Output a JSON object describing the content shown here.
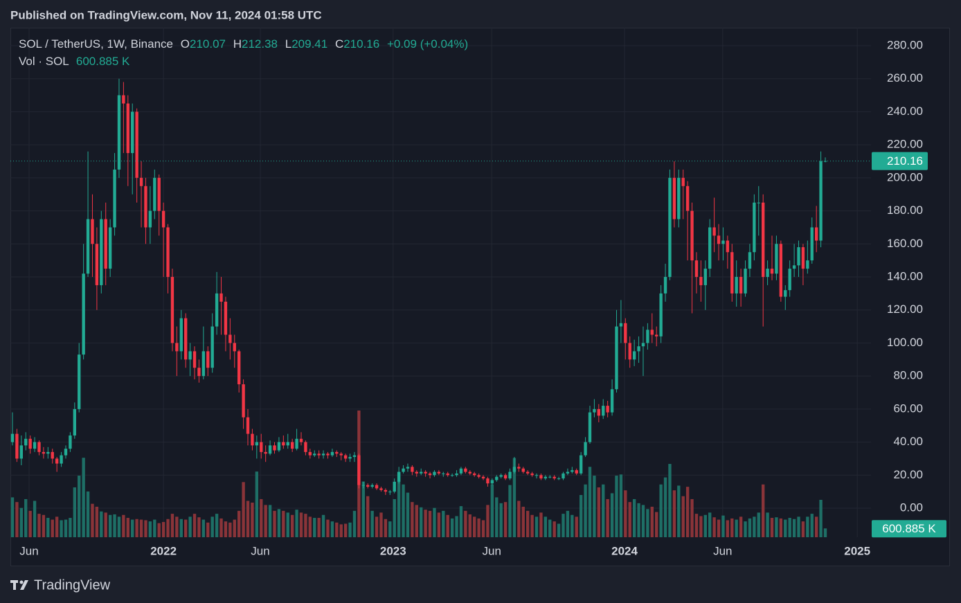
{
  "header": "Published on TradingView.com, Nov 11, 2024 01:58 UTC",
  "footer": "TradingView",
  "chart_data": {
    "type": "candlestick",
    "legend": {
      "symbol": "SOL / TetherUS, 1W, Binance",
      "open_label": "O",
      "high_label": "H",
      "low_label": "L",
      "close_label": "C",
      "change": "+0.09 (+0.04%)",
      "volume_title": "Vol · SOL",
      "volume_value_label": "600.885 K"
    },
    "up_color": "#22ab94",
    "down_color": "#f23645",
    "volume_up_color": "#1e6f66",
    "volume_down_color": "#8a3439",
    "grid": true,
    "ylim": [
      -17.6,
      290.9
    ],
    "yticks": [
      {
        "value": 0,
        "label": "0.00"
      },
      {
        "value": 20,
        "label": "20.00"
      },
      {
        "value": 40,
        "label": "40.00"
      },
      {
        "value": 60,
        "label": "60.00"
      },
      {
        "value": 80,
        "label": "80.00"
      },
      {
        "value": 100,
        "label": "100.00"
      },
      {
        "value": 120,
        "label": "120.00"
      },
      {
        "value": 140,
        "label": "140.00"
      },
      {
        "value": 160,
        "label": "160.00"
      },
      {
        "value": 180,
        "label": "180.00"
      },
      {
        "value": 200,
        "label": "200.00"
      },
      {
        "value": 220,
        "label": "220.00"
      },
      {
        "value": 240,
        "label": "240.00"
      },
      {
        "value": 260,
        "label": "260.00"
      },
      {
        "value": 280,
        "label": "280.00"
      }
    ],
    "xticks": [
      {
        "value": 3.74,
        "label": "Jun"
      },
      {
        "value": 34.0,
        "label": "2022"
      },
      {
        "value": 55.8,
        "label": "Jun"
      },
      {
        "value": 85.7,
        "label": "2023"
      },
      {
        "value": 107.9,
        "label": "Jun"
      },
      {
        "value": 137.8,
        "label": "2024"
      },
      {
        "value": 159.9,
        "label": "Jun"
      },
      {
        "value": 190.2,
        "label": "2025"
      }
    ],
    "open": [
      40,
      45,
      30,
      38,
      42,
      36,
      40,
      34,
      33,
      34,
      30,
      27,
      32,
      36,
      44,
      60,
      93,
      142,
      175,
      160,
      135,
      175,
      145,
      170,
      205,
      250,
      245,
      215,
      240,
      200,
      195,
      170,
      180,
      200,
      180,
      170,
      140,
      100,
      95,
      115,
      90,
      95,
      85,
      80,
      95,
      85,
      110,
      130,
      125,
      105,
      100,
      95,
      75,
      55,
      45,
      38,
      40,
      34,
      33,
      38,
      35,
      40,
      38,
      40,
      36,
      42,
      40,
      34,
      32,
      33,
      32,
      33,
      32,
      34,
      33,
      32,
      30,
      31,
      32,
      14,
      14,
      13,
      14,
      12,
      11,
      10,
      10,
      16,
      22,
      24,
      25,
      22,
      21,
      22,
      21,
      20,
      22,
      21,
      21,
      20,
      20,
      21,
      24,
      22,
      21,
      20,
      19,
      18,
      15,
      17,
      19,
      20,
      18,
      22,
      25,
      24,
      22,
      21,
      20,
      20,
      18,
      19,
      19,
      18,
      18,
      21,
      22,
      23,
      21,
      32,
      40,
      58,
      60,
      56,
      62,
      58,
      72,
      110,
      112,
      100,
      90,
      95,
      98,
      100,
      108,
      105,
      104,
      130,
      140,
      200,
      175,
      200,
      195,
      180,
      150,
      140,
      135,
      145,
      170,
      165,
      160,
      162,
      155,
      130,
      140,
      130,
      145,
      155,
      185,
      185,
      140,
      145,
      142,
      160,
      128,
      132,
      145,
      147,
      158,
      145,
      150,
      170,
      162,
      210.07
    ],
    "high": [
      58,
      48,
      44,
      46,
      44,
      43,
      41,
      37,
      37,
      36,
      31,
      34,
      38,
      46,
      64,
      100,
      160,
      216,
      190,
      170,
      180,
      185,
      175,
      215,
      260,
      258,
      250,
      245,
      242,
      210,
      200,
      195,
      205,
      202,
      185,
      172,
      145,
      110,
      120,
      118,
      100,
      98,
      90,
      110,
      98,
      118,
      143,
      140,
      128,
      115,
      105,
      96,
      78,
      60,
      48,
      44,
      45,
      38,
      41,
      40,
      43,
      44,
      45,
      42,
      48,
      46,
      41,
      36,
      35,
      35,
      35,
      34,
      36,
      35,
      34,
      33,
      33,
      34,
      33,
      16,
      15,
      15,
      15,
      13,
      12,
      11,
      18,
      25,
      26,
      27,
      26,
      23,
      24,
      23,
      22,
      23,
      23,
      22,
      22,
      21,
      23,
      25,
      25,
      23,
      22,
      21,
      20,
      19,
      18,
      20,
      21,
      21,
      24,
      31,
      27,
      25,
      23,
      22,
      21,
      21,
      20,
      20,
      20,
      19,
      22,
      24,
      25,
      24,
      34,
      43,
      62,
      66,
      63,
      66,
      65,
      78,
      120,
      126,
      115,
      104,
      102,
      104,
      110,
      112,
      118,
      110,
      135,
      148,
      205,
      210,
      205,
      205,
      198,
      185,
      155,
      150,
      150,
      175,
      188,
      172,
      170,
      165,
      160,
      150,
      145,
      150,
      160,
      190,
      195,
      190,
      150,
      165,
      165,
      162,
      135,
      150,
      160,
      162,
      160,
      162,
      176,
      183,
      216,
      212.38
    ],
    "low": [
      38,
      28,
      26,
      35,
      33,
      34,
      32,
      30,
      30,
      27,
      22,
      25,
      30,
      34,
      42,
      58,
      90,
      140,
      140,
      120,
      130,
      135,
      140,
      165,
      200,
      215,
      195,
      190,
      185,
      170,
      160,
      160,
      175,
      165,
      140,
      130,
      95,
      80,
      90,
      85,
      80,
      78,
      76,
      78,
      80,
      82,
      105,
      105,
      95,
      90,
      85,
      70,
      48,
      38,
      35,
      30,
      30,
      28,
      32,
      33,
      34,
      36,
      36,
      34,
      35,
      38,
      32,
      30,
      31,
      30,
      30,
      30,
      31,
      31,
      29,
      28,
      28,
      28,
      12,
      12,
      12,
      12,
      11,
      10,
      8,
      8,
      9,
      15,
      21,
      22,
      20,
      19,
      20,
      19,
      18,
      19,
      20,
      19,
      19,
      19,
      19,
      20,
      21,
      20,
      19,
      18,
      17,
      13,
      14,
      16,
      18,
      17,
      17,
      21,
      22,
      21,
      20,
      19,
      18,
      17,
      17,
      18,
      17,
      17,
      17,
      20,
      21,
      20,
      20,
      31,
      39,
      55,
      52,
      54,
      55,
      56,
      70,
      100,
      90,
      85,
      86,
      88,
      80,
      96,
      100,
      98,
      100,
      125,
      138,
      170,
      170,
      175,
      150,
      118,
      130,
      125,
      120,
      140,
      155,
      150,
      150,
      145,
      125,
      122,
      122,
      128,
      140,
      150,
      165,
      110,
      135,
      138,
      138,
      125,
      120,
      128,
      140,
      140,
      135,
      142,
      148,
      155,
      158,
      209.41
    ],
    "close": [
      45,
      30,
      38,
      42,
      36,
      40,
      34,
      33,
      34,
      30,
      27,
      32,
      36,
      44,
      60,
      93,
      142,
      175,
      160,
      135,
      175,
      145,
      170,
      205,
      250,
      245,
      215,
      240,
      200,
      195,
      170,
      180,
      200,
      180,
      170,
      140,
      100,
      95,
      115,
      90,
      95,
      85,
      80,
      95,
      85,
      110,
      130,
      125,
      105,
      100,
      95,
      75,
      55,
      45,
      38,
      40,
      34,
      33,
      38,
      35,
      40,
      38,
      40,
      36,
      42,
      40,
      34,
      32,
      33,
      32,
      33,
      32,
      34,
      33,
      32,
      30,
      31,
      32,
      14,
      14,
      13,
      14,
      12,
      11,
      10,
      10,
      16,
      22,
      24,
      25,
      22,
      21,
      22,
      21,
      20,
      22,
      21,
      21,
      20,
      20,
      21,
      24,
      22,
      21,
      20,
      19,
      18,
      15,
      17,
      19,
      20,
      18,
      22,
      25,
      24,
      22,
      21,
      20,
      20,
      18,
      19,
      19,
      18,
      18,
      21,
      22,
      23,
      21,
      32,
      40,
      58,
      60,
      56,
      62,
      58,
      72,
      110,
      112,
      100,
      90,
      95,
      98,
      100,
      108,
      105,
      104,
      130,
      140,
      200,
      175,
      200,
      195,
      180,
      150,
      140,
      135,
      145,
      170,
      165,
      160,
      162,
      155,
      130,
      140,
      130,
      145,
      155,
      185,
      185,
      140,
      145,
      142,
      160,
      128,
      132,
      145,
      147,
      158,
      145,
      150,
      170,
      162,
      210.07,
      210.16
    ],
    "volume": [
      2720,
      2400,
      2000,
      2600,
      1800,
      2480,
      1600,
      1520,
      1320,
      1200,
      1400,
      1160,
      1200,
      1320,
      3400,
      4200,
      5420,
      3120,
      2280,
      2080,
      1760,
      1680,
      1520,
      1560,
      1400,
      1520,
      1320,
      1200,
      1240,
      1200,
      1160,
      1080,
      1200,
      960,
      1040,
      1240,
      1600,
      1400,
      1240,
      1200,
      1400,
      1600,
      1360,
      1200,
      1000,
      1400,
      1600,
      1280,
      1080,
      1000,
      1200,
      1800,
      3760,
      2480,
      2360,
      4480,
      2600,
      2200,
      2200,
      1800,
      1920,
      1800,
      1680,
      1520,
      1880,
      1680,
      1600,
      1400,
      1320,
      1320,
      1520,
      1200,
      1080,
      1000,
      880,
      920,
      1000,
      1800,
      8640,
      3800,
      2800,
      1800,
      1400,
      1680,
      1240,
      1080,
      2600,
      4440,
      3600,
      3040,
      2400,
      2200,
      2040,
      1880,
      1800,
      2000,
      1680,
      1800,
      1520,
      1280,
      1440,
      2120,
      1800,
      1560,
      1400,
      1280,
      1160,
      2200,
      3600,
      2720,
      2320,
      2400,
      3560,
      5400,
      2480,
      2080,
      1800,
      1520,
      1400,
      1680,
      1400,
      1200,
      1080,
      920,
      1600,
      1800,
      1520,
      1400,
      2880,
      3600,
      4800,
      4200,
      3400,
      3600,
      2600,
      3000,
      4200,
      4280,
      3200,
      2400,
      2600,
      2320,
      2200,
      1920,
      2080,
      1720,
      3600,
      4080,
      5000,
      3200,
      3520,
      2800,
      3440,
      2600,
      1600,
      1440,
      1520,
      1680,
      1360,
      1200,
      1480,
      1160,
      1280,
      1200,
      1400,
      1080,
      1280,
      1400,
      1680,
      3600,
      1680,
      1320,
      1360,
      1280,
      1200,
      1320,
      1240,
      1400,
      1080,
      1400,
      1600,
      1400,
      2550,
      600.885
    ]
  }
}
